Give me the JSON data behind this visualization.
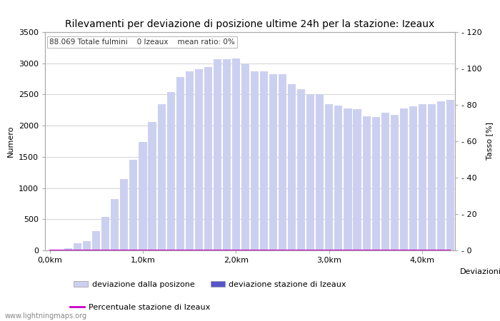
{
  "title": "Rilevamenti per deviazione di posizione ultime 24h per la stazione: Izeaux",
  "subtitle": "88.069 Totale fulmini    0 Izeaux    mean ratio: 0%",
  "xlabel": "Deviazioni",
  "ylabel_left": "Numero",
  "ylabel_right": "Tasso [%]",
  "watermark": "www.lightningmaps.org",
  "bar_values": [
    0,
    0,
    30,
    120,
    150,
    310,
    540,
    820,
    1140,
    1450,
    1740,
    2060,
    2340,
    2540,
    2780,
    2870,
    2900,
    2940,
    3060,
    3060,
    3080,
    2990,
    2870,
    2870,
    2830,
    2820,
    2670,
    2580,
    2490,
    2500,
    2340,
    2320,
    2280,
    2270,
    2150,
    2140,
    2210,
    2170,
    2280,
    2310,
    2340,
    2350,
    2390,
    2410
  ],
  "station_bar_values": [
    0,
    0,
    0,
    0,
    0,
    0,
    0,
    0,
    0,
    0,
    0,
    0,
    0,
    0,
    0,
    0,
    0,
    0,
    0,
    0,
    0,
    0,
    0,
    0,
    0,
    0,
    0,
    0,
    0,
    0,
    0,
    0,
    0,
    0,
    0,
    0,
    0,
    0,
    0,
    0,
    0,
    0,
    0,
    0
  ],
  "ratio_values": [
    0,
    0,
    0,
    0,
    0,
    0,
    0,
    0,
    0,
    0,
    0,
    0,
    0,
    0,
    0,
    0,
    0,
    0,
    0,
    0,
    0,
    0,
    0,
    0,
    0,
    0,
    0,
    0,
    0,
    0,
    0,
    0,
    0,
    0,
    0,
    0,
    0,
    0,
    0,
    0,
    0,
    0,
    0,
    0
  ],
  "bar_color": "#ccd0f0",
  "station_bar_color": "#5555cc",
  "ratio_line_color": "#cc00cc",
  "xlim_min": -0.5,
  "xlim_max": 43.5,
  "ylim_left": [
    0,
    3500
  ],
  "ylim_right": [
    0,
    120
  ],
  "xtick_positions": [
    0,
    10,
    20,
    30,
    40
  ],
  "xtick_labels": [
    "0,0km",
    "1,0km",
    "2,0km",
    "3,0km",
    "4,0km"
  ],
  "ytick_left": [
    0,
    500,
    1000,
    1500,
    2000,
    2500,
    3000,
    3500
  ],
  "ytick_right": [
    0,
    20,
    40,
    60,
    80,
    100,
    120
  ],
  "legend_label1": "deviazione dalla posizone",
  "legend_label2": "deviazione stazione di Izeaux",
  "legend_label3": "Percentuale stazione di Izeaux",
  "background_color": "#ffffff",
  "plot_bg_color": "#ffffff",
  "grid_color": "#cccccc",
  "title_fontsize": 10,
  "axis_fontsize": 8,
  "tick_fontsize": 8,
  "subtitle_fontsize": 7.5,
  "legend_fontsize": 8,
  "watermark_fontsize": 7
}
